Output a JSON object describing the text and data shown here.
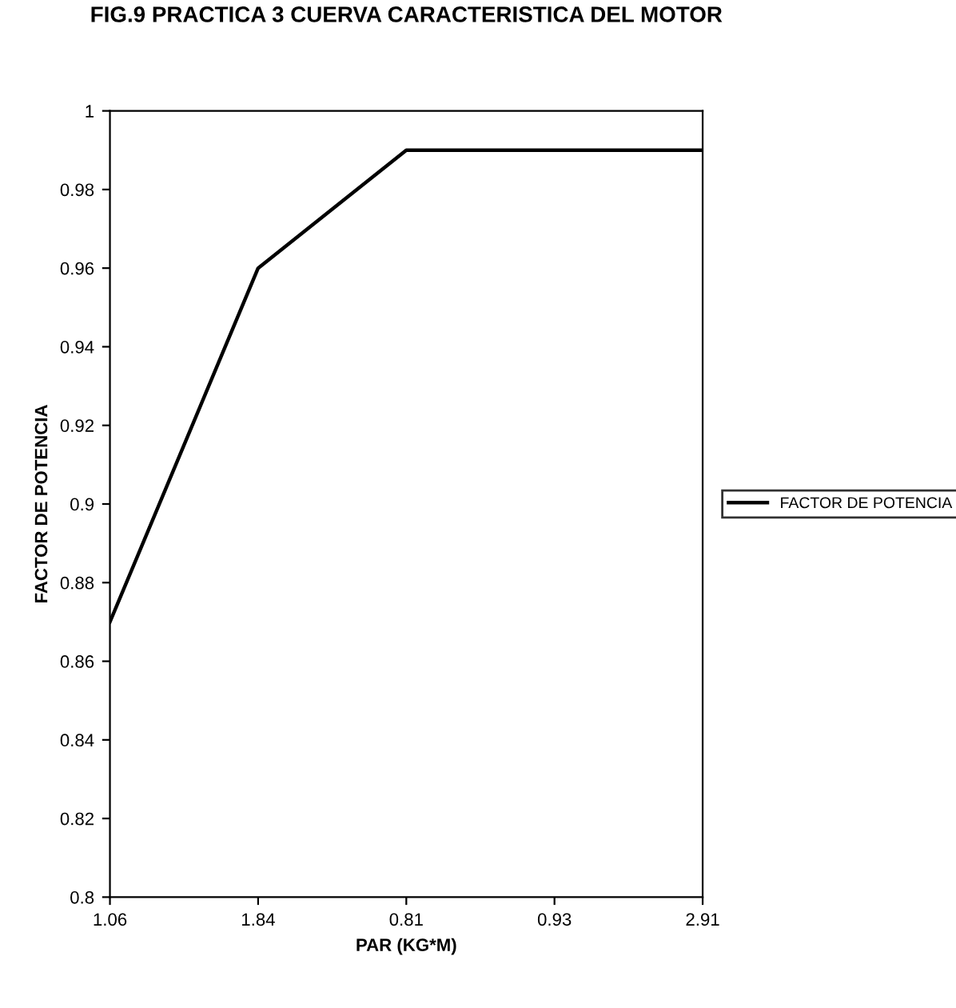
{
  "chart_data": {
    "type": "line",
    "title": "FIG.9 PRACTICA 3 CUERVA CARACTERISTICA DEL MOTOR",
    "xlabel": "PAR (KG*M)",
    "ylabel": "FACTOR DE POTENCIA",
    "categories": [
      "1.06",
      "1.84",
      "0.81",
      "0.93",
      "2.91"
    ],
    "series": [
      {
        "name": "FACTOR DE POTENCIA",
        "color": "#000000",
        "values": [
          0.87,
          0.96,
          0.99,
          0.99,
          0.99
        ]
      }
    ],
    "ylim": [
      0.8,
      1
    ],
    "yticks": [
      0.8,
      0.82,
      0.84,
      0.86,
      0.88,
      0.9,
      0.92,
      0.94,
      0.96,
      0.98,
      1
    ],
    "legend": "right",
    "grid": false,
    "marker": "none",
    "line_style": "solid"
  }
}
